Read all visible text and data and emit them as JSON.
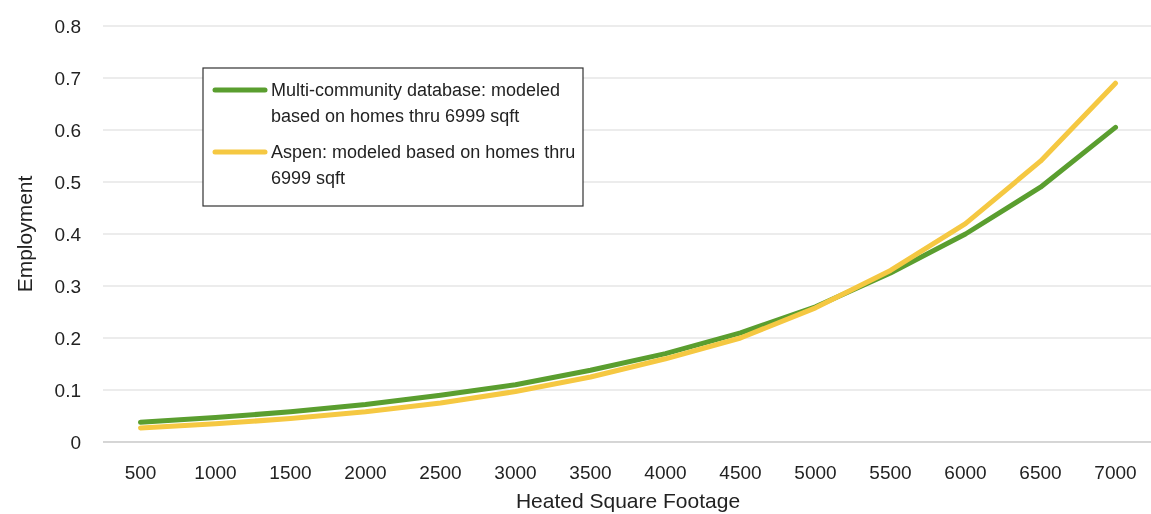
{
  "chart_data": {
    "type": "line",
    "xlabel": "Heated Square Footage",
    "ylabel": "Employment",
    "categories": [
      "500",
      "1000",
      "1500",
      "2000",
      "2500",
      "3000",
      "3500",
      "4000",
      "4500",
      "5000",
      "5500",
      "6000",
      "6500",
      "7000"
    ],
    "series": [
      {
        "name": "Multi-community database: modeled based on homes thru 6999 sqft",
        "color": "#5a9e2f",
        "values": [
          0.038,
          0.047,
          0.058,
          0.072,
          0.09,
          0.11,
          0.138,
          0.17,
          0.21,
          0.26,
          0.325,
          0.4,
          0.49,
          0.605
        ]
      },
      {
        "name": "Aspen: modeled based on homes thru 6999 sqft",
        "color": "#f5c842",
        "values": [
          0.027,
          0.035,
          0.045,
          0.058,
          0.075,
          0.097,
          0.125,
          0.16,
          0.2,
          0.258,
          0.33,
          0.42,
          0.54,
          0.69
        ]
      }
    ],
    "ylim": [
      0,
      0.8
    ],
    "yticks": [
      0,
      0.1,
      0.2,
      0.3,
      0.4,
      0.5,
      0.6,
      0.7,
      0.8
    ],
    "grid": "y",
    "legend": "top left",
    "marker": "none",
    "line_style": "solid"
  }
}
